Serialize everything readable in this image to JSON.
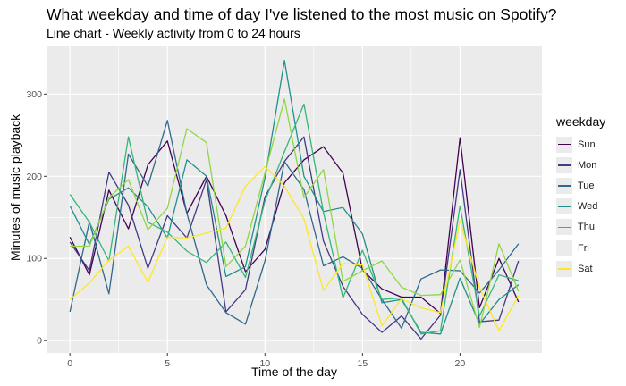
{
  "chart_data": {
    "type": "line",
    "title": "What weekday and time of day I've listened to the most music on Spotify?",
    "subtitle": "Line chart - Weekly activity from 0 to 24 hours",
    "xlabel": "Time of the day",
    "ylabel": "Minutes of music playback",
    "xlim": [
      -1.2,
      24.2
    ],
    "ylim": [
      -15,
      358
    ],
    "xticks": [
      0,
      5,
      10,
      15,
      20
    ],
    "yticks": [
      0,
      100,
      200,
      300
    ],
    "grid": true,
    "legend": {
      "title": "weekday",
      "position": "right"
    },
    "x": [
      0,
      1,
      2,
      3,
      4,
      5,
      6,
      7,
      8,
      9,
      10,
      11,
      12,
      13,
      14,
      15,
      16,
      17,
      18,
      19,
      20,
      21,
      22,
      23
    ],
    "series": [
      {
        "name": "Sun",
        "color": "#440154",
        "values": [
          126,
          80,
          183,
          136,
          214,
          243,
          155,
          200,
          152,
          84,
          111,
          192,
          220,
          236,
          204,
          86,
          63,
          53,
          53,
          33,
          247,
          40,
          100,
          47
        ]
      },
      {
        "name": "Mon",
        "color": "#443a83",
        "values": [
          120,
          85,
          205,
          165,
          88,
          152,
          125,
          196,
          35,
          62,
          175,
          218,
          248,
          121,
          66,
          32,
          10,
          30,
          2,
          31,
          208,
          23,
          25,
          97
        ]
      },
      {
        "name": "Tue",
        "color": "#31688e",
        "values": [
          35,
          145,
          57,
          227,
          188,
          268,
          155,
          68,
          34,
          20,
          97,
          218,
          184,
          91,
          102,
          88,
          50,
          15,
          75,
          86,
          85,
          58,
          86,
          118
        ]
      },
      {
        "name": "Wed",
        "color": "#21908d",
        "values": [
          164,
          117,
          172,
          186,
          163,
          125,
          220,
          200,
          78,
          90,
          198,
          341,
          200,
          157,
          162,
          130,
          46,
          50,
          10,
          8,
          76,
          20,
          50,
          68
        ]
      },
      {
        "name": "Thu",
        "color": "#35b779",
        "values": [
          178,
          144,
          97,
          248,
          144,
          132,
          109,
          95,
          120,
          77,
          170,
          230,
          288,
          156,
          52,
          110,
          50,
          52,
          8,
          12,
          164,
          30,
          80,
          73
        ]
      },
      {
        "name": "Fri",
        "color": "#8fd744",
        "values": [
          115,
          115,
          174,
          196,
          135,
          161,
          258,
          241,
          90,
          115,
          204,
          294,
          174,
          208,
          72,
          85,
          97,
          65,
          55,
          56,
          98,
          16,
          118,
          60
        ]
      },
      {
        "name": "Sat",
        "color": "#fde725",
        "values": [
          50,
          70,
          98,
          115,
          71,
          126,
          125,
          131,
          137,
          188,
          212,
          188,
          148,
          61,
          94,
          92,
          18,
          51,
          40,
          34,
          146,
          65,
          12,
          55
        ]
      }
    ]
  }
}
